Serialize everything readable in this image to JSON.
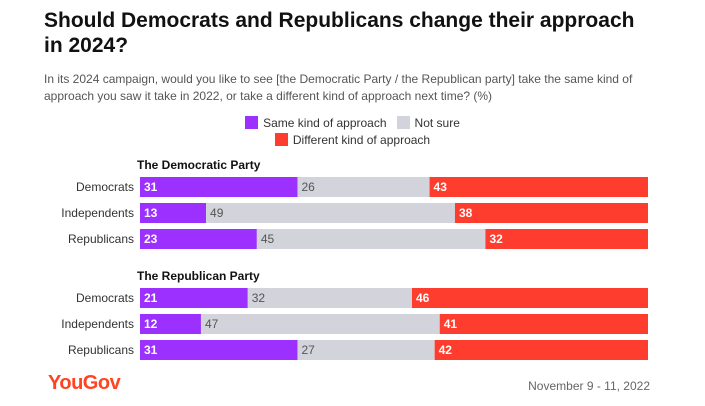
{
  "title": "Should Democrats and Republicans change their approach in 2024?",
  "subtitle": "In its 2024 campaign, would you like to see [the Democratic Party / the Republican party] take the same kind of approach you saw it take in 2022, or take a different kind of approach next time? (%)",
  "legend": {
    "same": "Same kind of approach",
    "not_sure": "Not sure",
    "different": "Different kind of approach"
  },
  "colors": {
    "same": "#9b30ff",
    "not_sure": "#d3d3dc",
    "different": "#ff3d2e"
  },
  "footer": {
    "logo": "YouGov",
    "date": "November 9 - 11, 2022"
  },
  "chart_data": {
    "type": "bar",
    "orientation": "horizontal-stacked",
    "series_names": [
      "Same kind of approach",
      "Not sure",
      "Different kind of approach"
    ],
    "xlim": [
      0,
      100
    ],
    "groups": [
      {
        "title": "The Democratic Party",
        "categories": [
          "Democrats",
          "Independents",
          "Republicans"
        ],
        "series": [
          {
            "name": "Same kind of approach",
            "values": [
              31,
              13,
              23
            ]
          },
          {
            "name": "Not sure",
            "values": [
              26,
              49,
              45
            ]
          },
          {
            "name": "Different kind of approach",
            "values": [
              43,
              38,
              32
            ]
          }
        ]
      },
      {
        "title": "The Republican Party",
        "categories": [
          "Democrats",
          "Independents",
          "Republicans"
        ],
        "series": [
          {
            "name": "Same kind of approach",
            "values": [
              21,
              12,
              31
            ]
          },
          {
            "name": "Not sure",
            "values": [
              32,
              47,
              27
            ]
          },
          {
            "name": "Different kind of approach",
            "values": [
              46,
              41,
              42
            ]
          }
        ]
      }
    ]
  }
}
